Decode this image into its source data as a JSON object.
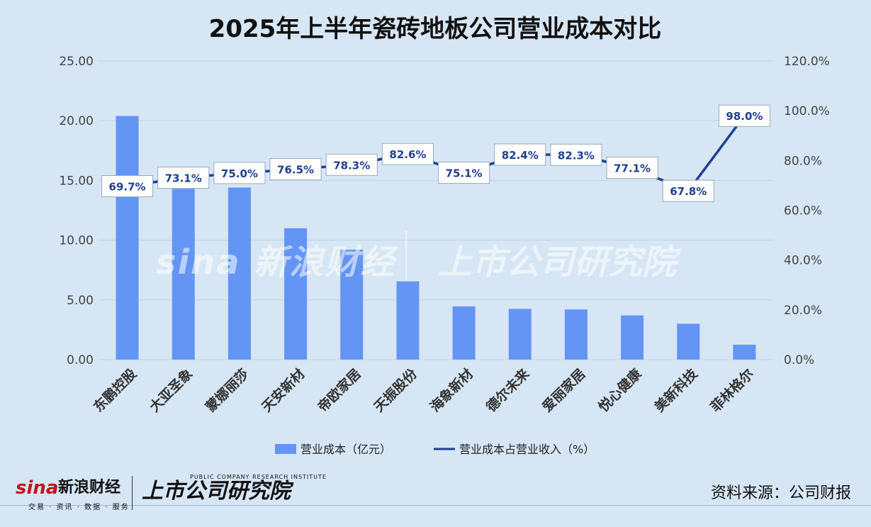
{
  "chart_data": {
    "type": "bar+line",
    "title": "2025年上半年瓷砖地板公司营业成本对比",
    "categories": [
      "东鹏控股",
      "大亚圣象",
      "蒙娜丽莎",
      "天安新材",
      "帝欧家居",
      "天振股份",
      "海象新材",
      "德尔未来",
      "爱丽家居",
      "悦心健康",
      "美新科技",
      "菲林格尔"
    ],
    "series": [
      {
        "name": "营业成本（亿元）",
        "type": "bar",
        "axis": "left",
        "color": "#6495f5",
        "values": [
          20.4,
          14.3,
          14.4,
          11.0,
          9.2,
          6.55,
          4.45,
          4.25,
          4.2,
          3.7,
          3.0,
          1.25
        ]
      },
      {
        "name": "营业成本占营业收入（%）",
        "type": "line",
        "axis": "right",
        "color": "#1f3f8f",
        "values": [
          69.7,
          73.1,
          75.0,
          76.5,
          78.3,
          82.6,
          75.1,
          82.4,
          82.3,
          77.1,
          67.8,
          98.0
        ],
        "labels": [
          "69.7%",
          "73.1%",
          "75.0%",
          "76.5%",
          "78.3%",
          "82.6%",
          "75.1%",
          "82.4%",
          "82.3%",
          "77.1%",
          "67.8%",
          "98.0%"
        ]
      }
    ],
    "y_left": {
      "min": 0,
      "max": 25,
      "ticks": [
        "0.00",
        "5.00",
        "10.00",
        "15.00",
        "20.00",
        "25.00"
      ]
    },
    "y_right": {
      "min": 0,
      "max": 120,
      "ticks": [
        "0.0%",
        "20.0%",
        "40.0%",
        "60.0%",
        "80.0%",
        "100.0%",
        "120.0%"
      ]
    },
    "grid": true,
    "legend": "bottom"
  },
  "watermark": {
    "sina": "sina 新浪财经",
    "institute": "上市公司研究院"
  },
  "footer": {
    "sina_logo": "sina",
    "sina_cn": "新浪财经",
    "sina_sub": "交易 · 资讯 · 数据 · 服务",
    "institute": "上市公司研究院",
    "institute_en": "PUBLIC COMPANY RESEARCH INSTITUTE",
    "source": "资料来源：公司财报"
  },
  "colors": {
    "background": "#d6e6f4",
    "bar": "#6495f5",
    "line": "#1f3f8f"
  }
}
